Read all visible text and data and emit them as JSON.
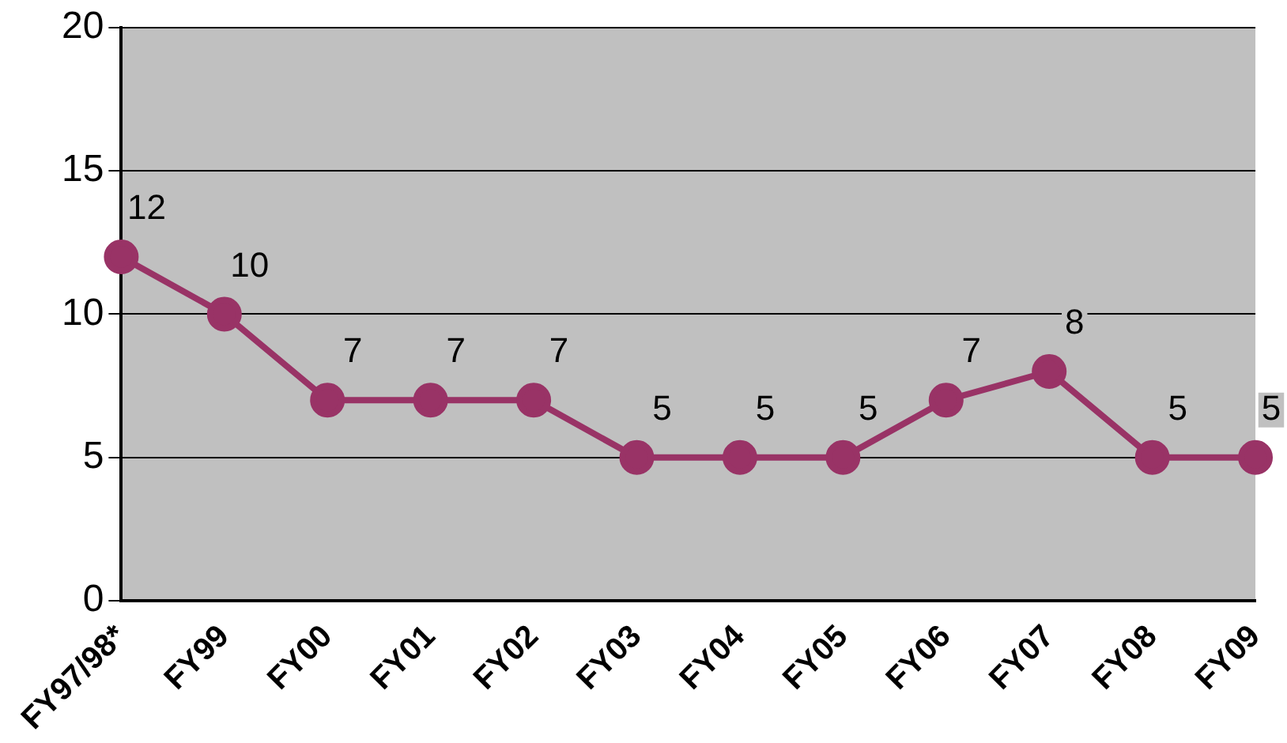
{
  "chart_data": {
    "type": "line",
    "categories": [
      "FY97/98*",
      "FY99",
      "FY00",
      "FY01",
      "FY02",
      "FY03",
      "FY04",
      "FY05",
      "FY06",
      "FY07",
      "FY08",
      "FY09"
    ],
    "series": [
      {
        "color": "#993366",
        "values": [
          12,
          10,
          7,
          7,
          7,
          5,
          5,
          5,
          7,
          8,
          5,
          5
        ]
      }
    ],
    "ylim": [
      0,
      20
    ],
    "yticks": [
      0,
      5,
      10,
      15,
      20
    ],
    "grid": "y",
    "marker": "circle",
    "line_style": "solid",
    "data_labels": true,
    "legend": false
  }
}
